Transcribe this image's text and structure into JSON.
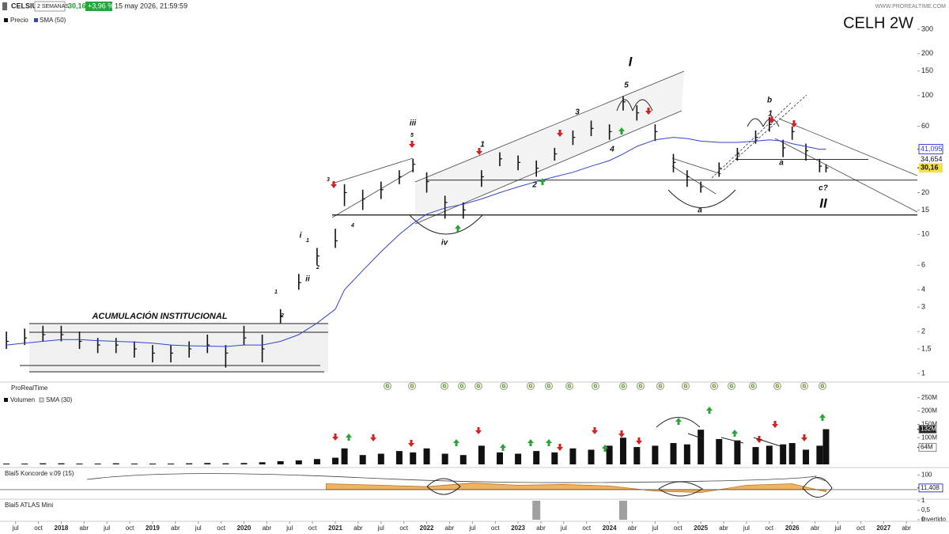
{
  "header": {
    "symbol": "CELSIUS",
    "period": "2 SEMANAS",
    "last": "30,16",
    "change": "+3,96 %",
    "timestamp": "15 may 2026, 21:59:59",
    "site": "WWW.PROREALTIME.COM",
    "mode": "Invertido"
  },
  "chart_data": [
    {
      "type": "ohlc",
      "title": "CELH  2W",
      "log_scale": true,
      "x": [
        2017.4,
        2017.6,
        2017.8,
        2018.0,
        2018.2,
        2018.4,
        2018.6,
        2018.8,
        2019.0,
        2019.2,
        2019.4,
        2019.6,
        2019.8,
        2020.0,
        2020.2,
        2020.4,
        2020.6,
        2020.8,
        2021.0,
        2021.1,
        2021.3,
        2021.5,
        2021.7,
        2021.85,
        2022.0,
        2022.2,
        2022.4,
        2022.6,
        2022.8,
        2023.0,
        2023.2,
        2023.4,
        2023.6,
        2023.8,
        2024.0,
        2024.15,
        2024.3,
        2024.5,
        2024.7,
        2024.85,
        2025.0,
        2025.2,
        2025.4,
        2025.6,
        2025.75,
        2025.9,
        2026.0,
        2026.15,
        2026.3,
        2026.37
      ],
      "series": [
        {
          "name": "Precio",
          "color": "#111111",
          "values": [
            1.7,
            1.8,
            1.9,
            1.9,
            1.7,
            1.6,
            1.6,
            1.5,
            1.4,
            1.4,
            1.5,
            1.6,
            1.4,
            1.8,
            1.5,
            2.6,
            4.5,
            7,
            9,
            20,
            18,
            21,
            26,
            32,
            24,
            17,
            15,
            26,
            35,
            33,
            30,
            38,
            50,
            58,
            55,
            90,
            75,
            55,
            33,
            26,
            22,
            30,
            38,
            50,
            62,
            42,
            55,
            40,
            31,
            30.16
          ],
          "high": [
            2.0,
            2.1,
            2.2,
            2.2,
            2.0,
            1.8,
            1.8,
            1.7,
            1.6,
            1.6,
            1.7,
            1.9,
            1.6,
            2.2,
            1.9,
            2.9,
            5.2,
            8,
            11,
            23,
            21,
            24,
            29,
            35,
            28,
            19,
            17,
            29,
            39,
            37,
            34,
            42,
            56,
            66,
            62,
            99,
            85,
            62,
            38,
            29,
            24,
            33,
            42,
            56,
            70,
            48,
            60,
            45,
            35,
            32
          ],
          "low": [
            1.5,
            1.6,
            1.7,
            1.7,
            1.5,
            1.4,
            1.4,
            1.3,
            1.2,
            1.2,
            1.3,
            1.4,
            1.1,
            1.6,
            1.2,
            2.3,
            4,
            6,
            8,
            16,
            15,
            18,
            23,
            28,
            20,
            13,
            13,
            22,
            31,
            29,
            26,
            34,
            44,
            51,
            48,
            78,
            66,
            47,
            28,
            22,
            20,
            26,
            34,
            45,
            55,
            36,
            48,
            34,
            28,
            28
          ]
        },
        {
          "name": "SMA (50)",
          "color": "#3344cc",
          "values": [
            1.6,
            1.65,
            1.7,
            1.75,
            1.75,
            1.72,
            1.7,
            1.68,
            1.65,
            1.6,
            1.58,
            1.57,
            1.56,
            1.6,
            1.6,
            1.7,
            1.9,
            2.3,
            2.9,
            4,
            5.5,
            7.5,
            10,
            12,
            14,
            15.5,
            16.5,
            18,
            20,
            22,
            24,
            26,
            28,
            31,
            34,
            38,
            43,
            48,
            50,
            49,
            47,
            46,
            46,
            47,
            48,
            47,
            45,
            43,
            41,
            41.095
          ]
        }
      ],
      "ylim": [
        0.9,
        400
      ],
      "yticks": [
        1,
        {
          "value": 1.5,
          "label": "1,5"
        },
        2,
        3,
        4,
        6,
        10,
        15,
        20,
        60,
        100,
        150,
        200,
        300
      ],
      "price_labels": [
        {
          "value": 41.095,
          "label": "41,095"
        },
        {
          "value": 34.654,
          "label": "34,654"
        },
        {
          "value": 30.16,
          "label": "30,16"
        }
      ],
      "levels": [
        13.8,
        24.6
      ],
      "xlim": [
        2017.33,
        2027.37
      ],
      "xticks": [
        {
          "value": 2017.5,
          "label": "jul"
        },
        {
          "value": 2017.75,
          "label": "oct"
        },
        2018,
        {
          "value": 2018.25,
          "label": "abr"
        },
        {
          "value": 2018.5,
          "label": "jul"
        },
        {
          "value": 2018.75,
          "label": "oct"
        },
        2019,
        {
          "value": 2019.25,
          "label": "abr"
        },
        {
          "value": 2019.5,
          "label": "jul"
        },
        {
          "value": 2019.75,
          "label": "oct"
        },
        2020,
        {
          "value": 2020.25,
          "label": "abr"
        },
        {
          "value": 2020.5,
          "label": "jul"
        },
        {
          "value": 2020.75,
          "label": "oct"
        },
        2021,
        {
          "value": 2021.25,
          "label": "abr"
        },
        {
          "value": 2021.5,
          "label": "jul"
        },
        {
          "value": 2021.75,
          "label": "oct"
        },
        2022,
        {
          "value": 2022.25,
          "label": "abr"
        },
        {
          "value": 2022.5,
          "label": "jul"
        },
        {
          "value": 2022.75,
          "label": "oct"
        },
        2023,
        {
          "value": 2023.25,
          "label": "abr"
        },
        {
          "value": 2023.5,
          "label": "jul"
        },
        {
          "value": 2023.75,
          "label": "oct"
        },
        2024,
        {
          "value": 2024.25,
          "label": "abr"
        },
        {
          "value": 2024.5,
          "label": "jul"
        },
        {
          "value": 2024.75,
          "label": "oct"
        },
        2025,
        {
          "value": 2025.25,
          "label": "abr"
        },
        {
          "value": 2025.5,
          "label": "jul"
        },
        {
          "value": 2025.75,
          "label": "oct"
        },
        2026,
        {
          "value": 2026.25,
          "label": "abr"
        },
        {
          "value": 2026.5,
          "label": "jul"
        },
        {
          "value": 2026.75,
          "label": "oct"
        },
        2027,
        {
          "value": 2027.25,
          "label": "abr"
        }
      ],
      "annotations": [
        "ACUMULACIÓN INSTITUCIONAL",
        "I",
        "5",
        "iii",
        "5",
        "3",
        "4",
        "1",
        "2",
        "iv",
        "3",
        "4",
        "i",
        "1",
        "2",
        "ii",
        "1",
        "2",
        "b",
        "1",
        "a",
        "a",
        "c?",
        "II"
      ],
      "signal_label": "G"
    },
    {
      "type": "bar",
      "panel_title": "ProRealTime",
      "indicator": "SMA (30)",
      "x": [
        2017.4,
        2017.6,
        2017.8,
        2018.0,
        2018.2,
        2018.4,
        2018.6,
        2018.8,
        2019.0,
        2019.2,
        2019.4,
        2019.6,
        2019.8,
        2020.0,
        2020.2,
        2020.4,
        2020.6,
        2020.8,
        2021.0,
        2021.1,
        2021.3,
        2021.5,
        2021.7,
        2021.85,
        2022.0,
        2022.2,
        2022.4,
        2022.6,
        2022.8,
        2023.0,
        2023.2,
        2023.4,
        2023.6,
        2023.8,
        2024.0,
        2024.15,
        2024.3,
        2024.5,
        2024.7,
        2024.85,
        2025.0,
        2025.2,
        2025.4,
        2025.6,
        2025.75,
        2025.9,
        2026.0,
        2026.15,
        2026.3,
        2026.37
      ],
      "series": [
        {
          "name": "Volumen",
          "color": "#111111",
          "values": [
            3000000,
            3000000,
            4000000,
            4000000,
            3000000,
            3000000,
            4000000,
            3000000,
            3000000,
            3000000,
            4000000,
            5000000,
            4000000,
            5000000,
            8000000,
            12000000,
            15000000,
            20000000,
            25000000,
            60000000,
            35000000,
            40000000,
            50000000,
            45000000,
            60000000,
            40000000,
            35000000,
            70000000,
            45000000,
            40000000,
            50000000,
            45000000,
            60000000,
            55000000,
            70000000,
            100000000,
            65000000,
            70000000,
            80000000,
            75000000,
            130000000,
            95000000,
            90000000,
            65000000,
            70000000,
            75000000,
            80000000,
            55000000,
            70000000,
            132000000
          ]
        }
      ],
      "ylim": [
        0,
        270000000
      ],
      "yticks": [
        {
          "value": 100000000,
          "label": "100M"
        },
        {
          "value": 150000000,
          "label": "150M"
        },
        {
          "value": 200000000,
          "label": "200M"
        },
        {
          "value": 250000000,
          "label": "250M"
        }
      ],
      "value_boxes": [
        {
          "value": 132000000,
          "label": "132M"
        },
        {
          "value": 64000000,
          "label": "64M"
        }
      ]
    },
    {
      "type": "area",
      "title": "Blai5 Koncorde v.09 (15)",
      "color": "#f0b35e",
      "x": [
        2020.9,
        2021.5,
        2022.0,
        2022.5,
        2023.0,
        2023.5,
        2024.0,
        2024.5,
        2025.0,
        2025.5,
        2026.0,
        2026.37
      ],
      "values": [
        40,
        30,
        20,
        45,
        30,
        35,
        25,
        -10,
        -20,
        30,
        40,
        -15
      ],
      "ylim": [
        -60,
        140
      ],
      "yticks": [
        100
      ],
      "value_boxes": [
        {
          "value": 11.408,
          "label": "11,408"
        }
      ]
    },
    {
      "type": "bar",
      "title": "Blai5 ATLAS Mini",
      "color": "#888888",
      "x": [
        2023.2,
        2024.15
      ],
      "values": [
        1,
        1
      ],
      "ylim": [
        0,
        1.04
      ],
      "yticks": [
        0,
        {
          "value": 0.5,
          "label": "0,5"
        },
        1
      ]
    }
  ]
}
